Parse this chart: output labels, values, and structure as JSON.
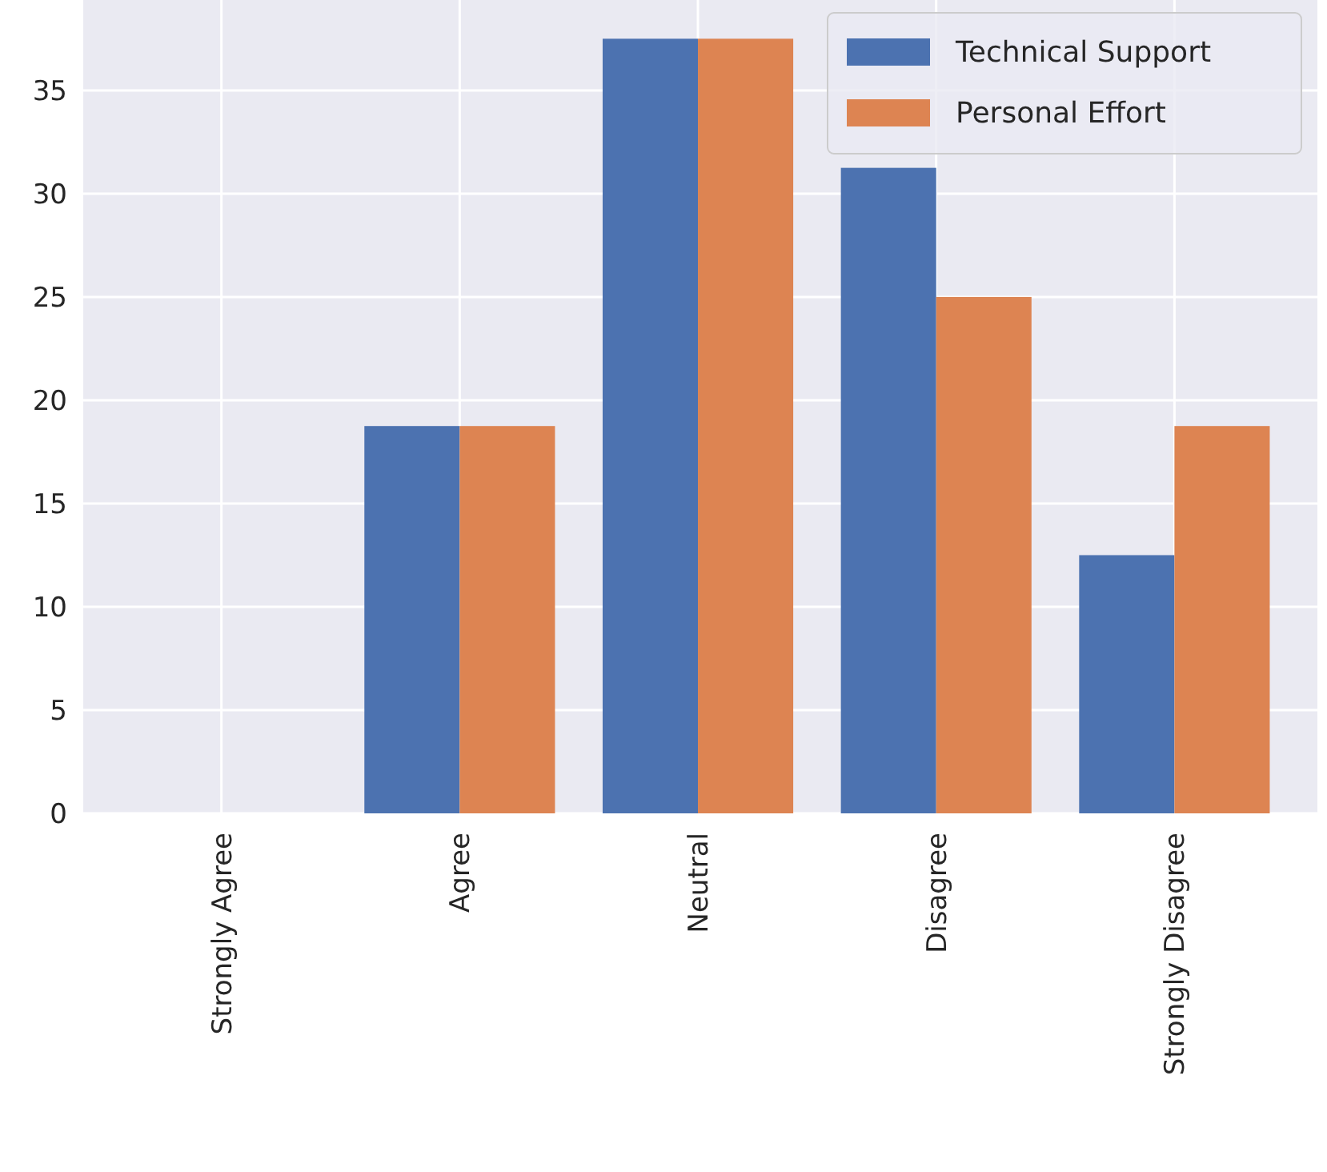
{
  "chart_data": {
    "type": "bar",
    "categories": [
      "Strongly Agree",
      "Agree",
      "Neutral",
      "Disagree",
      "Strongly Disagree"
    ],
    "series": [
      {
        "name": "Technical Support",
        "color": "#4c72b0",
        "values": [
          0,
          18.75,
          37.5,
          31.25,
          12.5
        ]
      },
      {
        "name": "Personal Effort",
        "color": "#dd8452",
        "values": [
          0,
          18.75,
          37.5,
          25,
          18.75
        ]
      }
    ],
    "ylim": [
      0,
      39.375
    ],
    "yticks": [
      0,
      5,
      10,
      15,
      20,
      25,
      30,
      35
    ],
    "grid": true,
    "legend": "top right"
  }
}
